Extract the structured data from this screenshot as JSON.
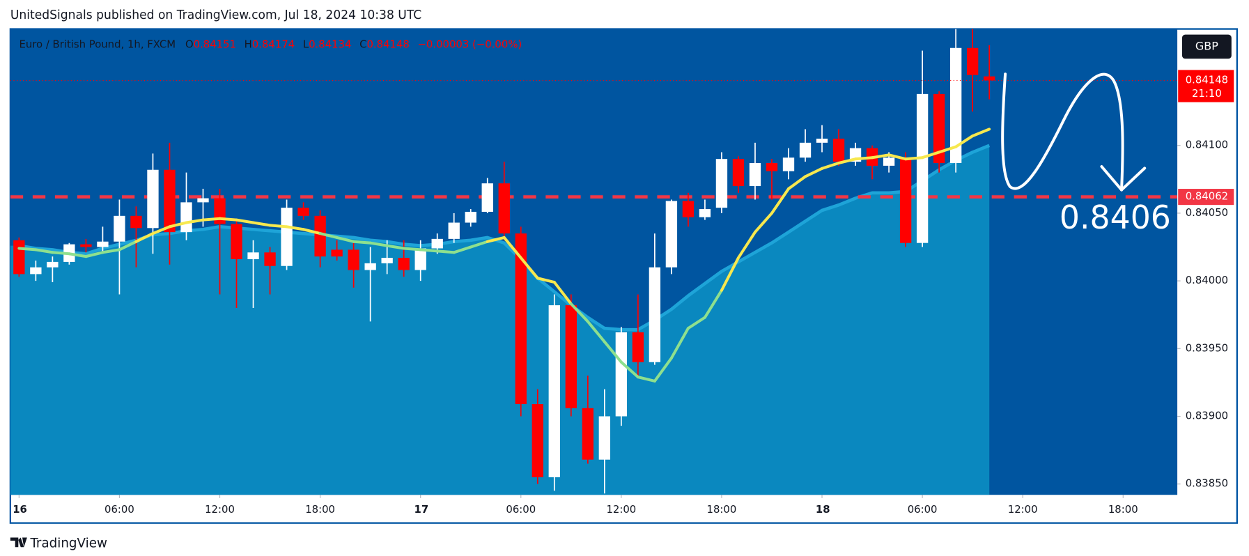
{
  "header": {
    "text": "UnitedSignals published on TradingView.com, Jul 18, 2024 10:38 UTC"
  },
  "chart_data": {
    "type": "candlestick",
    "symbol": "Euro / British Pound, 1h, FXCM",
    "legend_labels": [
      "O",
      "H",
      "L",
      "C"
    ],
    "change": "−0.00003 (−0.00%)",
    "currency": "GBP",
    "countdown": "21:10",
    "annotation": "0.8406",
    "level": 0.84062,
    "level_color": "#f23645",
    "up_color": "#ffffff",
    "down_color": "#ff0000",
    "open": [
      0.8403,
      0.84005,
      0.8401,
      0.84014,
      0.84027,
      0.84025,
      0.84029,
      0.84048,
      0.84039,
      0.84082,
      0.84036,
      0.84058,
      0.84061,
      0.84042,
      0.84016,
      0.84021,
      0.84011,
      0.84054,
      0.84048,
      0.84023,
      0.84023,
      0.84008,
      0.84013,
      0.84017,
      0.84008,
      0.84024,
      0.84031,
      0.84043,
      0.84051,
      0.84072,
      0.84035,
      0.83909,
      0.83855,
      0.83982,
      0.83906,
      0.83868,
      0.839,
      0.83962,
      0.8394,
      0.8401,
      0.84059,
      0.84047,
      0.84054,
      0.8409,
      0.8407,
      0.84087,
      0.84081,
      0.84091,
      0.84102,
      0.84105,
      0.84088,
      0.84098,
      0.84085,
      0.84091,
      0.84028,
      0.84138,
      0.84087,
      0.84172,
      0.84151
    ],
    "high": [
      0.84032,
      0.84015,
      0.84018,
      0.84028,
      0.84031,
      0.8404,
      0.8406,
      0.84055,
      0.84094,
      0.84102,
      0.8408,
      0.84068,
      0.84068,
      0.84045,
      0.8403,
      0.84025,
      0.8406,
      0.84058,
      0.84052,
      0.8403,
      0.84028,
      0.84025,
      0.8403,
      0.8403,
      0.8403,
      0.84035,
      0.8405,
      0.84053,
      0.84076,
      0.84088,
      0.8404,
      0.8392,
      0.8399,
      0.8399,
      0.8393,
      0.8392,
      0.83966,
      0.8399,
      0.84035,
      0.8406,
      0.84065,
      0.8406,
      0.84095,
      0.84092,
      0.84102,
      0.8409,
      0.84098,
      0.84112,
      0.84115,
      0.84112,
      0.84102,
      0.841,
      0.84095,
      0.84095,
      0.8417,
      0.8414,
      0.84186,
      0.84186,
      0.84174
    ],
    "low": [
      0.84003,
      0.84,
      0.83999,
      0.84012,
      0.84021,
      0.8402,
      0.8399,
      0.8401,
      0.8402,
      0.84012,
      0.8403,
      0.8404,
      0.8399,
      0.8398,
      0.8398,
      0.8399,
      0.84008,
      0.84045,
      0.8401,
      0.84015,
      0.83995,
      0.8397,
      0.84005,
      0.84003,
      0.84,
      0.8402,
      0.84028,
      0.8404,
      0.8405,
      0.8403,
      0.839,
      0.8385,
      0.83845,
      0.839,
      0.83865,
      0.83843,
      0.83893,
      0.8393,
      0.83938,
      0.84005,
      0.8404,
      0.84045,
      0.8405,
      0.84065,
      0.8406,
      0.8406,
      0.84075,
      0.84088,
      0.84095,
      0.84085,
      0.84085,
      0.84075,
      0.8408,
      0.84025,
      0.84025,
      0.8408,
      0.8408,
      0.84125,
      0.84134
    ],
    "close": [
      0.84005,
      0.8401,
      0.84014,
      0.84027,
      0.84025,
      0.84029,
      0.84048,
      0.84039,
      0.84082,
      0.84036,
      0.84058,
      0.84061,
      0.84042,
      0.84016,
      0.84021,
      0.84011,
      0.84054,
      0.84048,
      0.84018,
      0.84018,
      0.84008,
      0.84013,
      0.84017,
      0.84008,
      0.84024,
      0.84031,
      0.84043,
      0.84051,
      0.84072,
      0.84035,
      0.83909,
      0.83855,
      0.83982,
      0.83906,
      0.83868,
      0.839,
      0.83962,
      0.8394,
      0.8401,
      0.84059,
      0.84047,
      0.84053,
      0.8409,
      0.8407,
      0.84087,
      0.84081,
      0.84091,
      0.84102,
      0.84105,
      0.84088,
      0.84098,
      0.84085,
      0.84091,
      0.84028,
      0.84138,
      0.84087,
      0.84172,
      0.84152,
      0.84148
    ],
    "overlays": [
      {
        "color": "#f7e84e",
        "color_below": "#8ee08e",
        "values": [
          0.84024,
          0.84023,
          0.84021,
          0.8402,
          0.84018,
          0.84021,
          0.84023,
          0.84029,
          0.84035,
          0.8404,
          0.84043,
          0.84045,
          0.84046,
          0.84045,
          0.84043,
          0.84041,
          0.8404,
          0.84038,
          0.84035,
          0.84032,
          0.84029,
          0.84028,
          0.84026,
          0.84024,
          0.84023,
          0.84022,
          0.84021,
          0.84025,
          0.84029,
          0.84032,
          0.84017,
          0.84002,
          0.83999,
          0.83983,
          0.8397,
          0.83955,
          0.8394,
          0.83929,
          0.83926,
          0.83943,
          0.83965,
          0.83973,
          0.83993,
          0.84017,
          0.84036,
          0.8405,
          0.84068,
          0.84077,
          0.84083,
          0.84087,
          0.8409,
          0.84091,
          0.84093,
          0.8409,
          0.84091,
          0.84095,
          0.84099,
          0.84107,
          0.84112
        ]
      },
      {
        "color": "#1ea4d8",
        "fill": "#0a88bf",
        "values": [
          0.84026,
          0.84024,
          0.84023,
          0.84021,
          0.8402,
          0.84024,
          0.84027,
          0.8403,
          0.84034,
          0.84035,
          0.84037,
          0.84038,
          0.8404,
          0.84039,
          0.84038,
          0.84037,
          0.84036,
          0.84035,
          0.84034,
          0.84033,
          0.84032,
          0.8403,
          0.84029,
          0.84027,
          0.84026,
          0.84027,
          0.84029,
          0.8403,
          0.84032,
          0.84028,
          0.84016,
          0.84002,
          0.83992,
          0.83982,
          0.83973,
          0.83965,
          0.83964,
          0.83964,
          0.83971,
          0.83979,
          0.83989,
          0.83998,
          0.84007,
          0.84014,
          0.84021,
          0.84028,
          0.84036,
          0.84044,
          0.84052,
          0.84056,
          0.84061,
          0.84065,
          0.84065,
          0.84066,
          0.84074,
          0.84082,
          0.84089,
          0.84095,
          0.841
        ]
      }
    ],
    "xlim": [
      -0.52,
      69.24
    ],
    "xticks": [
      {
        "value": 0,
        "label": "16"
      },
      {
        "value": 6,
        "label": "06:00"
      },
      {
        "value": 12,
        "label": "12:00"
      },
      {
        "value": 18,
        "label": "18:00"
      },
      {
        "value": 24,
        "label": "17"
      },
      {
        "value": 30,
        "label": "06:00"
      },
      {
        "value": 36,
        "label": "12:00"
      },
      {
        "value": 42,
        "label": "18:00"
      },
      {
        "value": 48,
        "label": "18"
      },
      {
        "value": 54,
        "label": "06:00"
      },
      {
        "value": 60,
        "label": "12:00"
      },
      {
        "value": 66,
        "label": "18:00"
      }
    ],
    "ylim": [
      0.83842,
      0.84186
    ],
    "yticks": [
      {
        "value": 0.8385,
        "label": "0.83850"
      },
      {
        "value": 0.839,
        "label": "0.83900"
      },
      {
        "value": 0.8395,
        "label": "0.83950"
      },
      {
        "value": 0.84,
        "label": "0.84000"
      },
      {
        "value": 0.8405,
        "label": "0.84050"
      },
      {
        "value": 0.841,
        "label": "0.84100"
      }
    ]
  },
  "footer": {
    "logo": "TradingView"
  }
}
